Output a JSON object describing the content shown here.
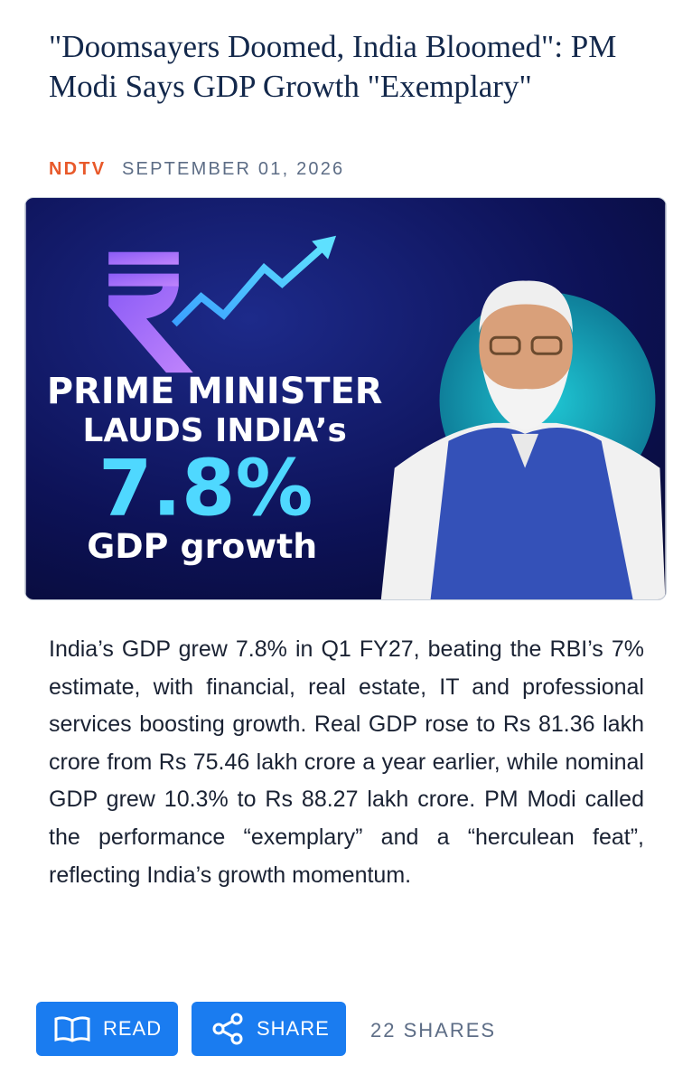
{
  "article": {
    "title": "\"Doomsayers Doomed, India Bloomed\": PM Modi Says GDP Growth \"Exemplary\"",
    "source": "NDTV",
    "date": "SEPTEMBER 01, 2026",
    "image_text": [
      "PRIME MINISTER",
      "LAUDS INDIA’s",
      "7.8%",
      "GDP growth"
    ],
    "body": "India’s GDP grew 7.8% in Q1 FY27, beating the RBI’s 7% estimate, with financial, real estate, IT and professional services boosting growth. Real GDP rose to Rs 81.36 lakh crore from Rs 75.46 lakh crore a year earlier, while nominal GDP grew 10.3% to Rs 88.27 lakh crore. PM Modi called the performance “exemplary” and a “herculean feat”, reflecting India’s growth momentum.",
    "actions": {
      "read": "READ",
      "share": "SHARE",
      "shares": "22 SHARES"
    }
  }
}
